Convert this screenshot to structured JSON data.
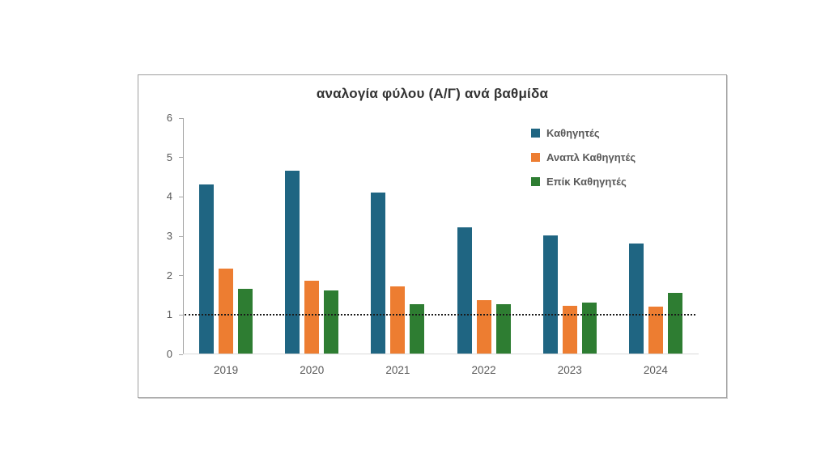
{
  "chart_data": {
    "type": "bar",
    "title": "αναλογία φύλου (Α/Γ) ανά βαθμίδα",
    "categories": [
      "2019",
      "2020",
      "2021",
      "2022",
      "2023",
      "2024"
    ],
    "series": [
      {
        "name": "Καθηγητές",
        "color": "#1f6582",
        "values": [
          4.3,
          4.65,
          4.08,
          3.2,
          3.0,
          2.8
        ]
      },
      {
        "name": "Αναπλ Καθηγητές",
        "color": "#ed7d31",
        "values": [
          2.15,
          1.85,
          1.7,
          1.35,
          1.22,
          1.2
        ]
      },
      {
        "name": "Επίκ Καθηγητές",
        "color": "#2e7d32",
        "values": [
          1.65,
          1.6,
          1.25,
          1.25,
          1.3,
          1.55
        ]
      }
    ],
    "xlabel": "",
    "ylabel": "",
    "ylim": [
      0,
      6
    ],
    "yticks": [
      0,
      1,
      2,
      3,
      4,
      5,
      6
    ],
    "reference_line": {
      "value": 1,
      "style": "dotted",
      "color": "#1a1a1a"
    },
    "legend_position": "inside-top-right",
    "grid": false,
    "axis_color": "#a6a6a6",
    "baseline_color": "#d9d9d9",
    "tick_label_color": "#595959"
  }
}
